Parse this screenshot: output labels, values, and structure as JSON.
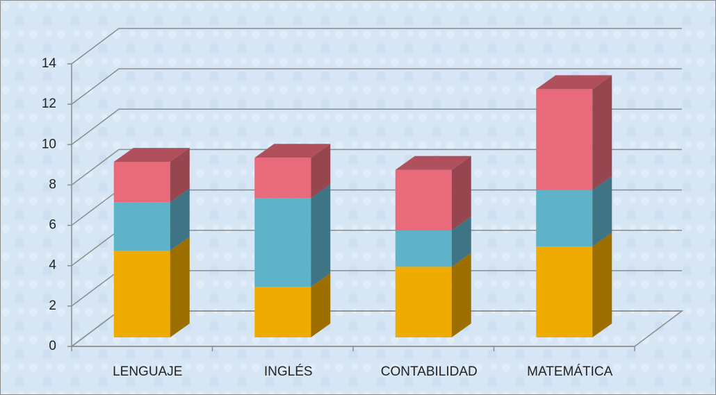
{
  "chart_data": {
    "type": "bar3d_stacked",
    "categories": [
      "LENGUAJE",
      "INGLÉS",
      "CONTABILIDAD",
      "MATEMÁTICA"
    ],
    "series": [
      {
        "color": "#f0ab00",
        "values": [
          4.3,
          2.5,
          3.5,
          4.5
        ]
      },
      {
        "color": "#5fb3c9",
        "values": [
          2.4,
          4.4,
          1.8,
          2.8
        ]
      },
      {
        "color": "#e96a7a",
        "values": [
          2.0,
          2.0,
          3.0,
          5.0
        ]
      }
    ],
    "ylim": [
      0,
      14
    ],
    "yticks": [
      0,
      2,
      4,
      6,
      8,
      10,
      12,
      14
    ],
    "grid": true
  }
}
